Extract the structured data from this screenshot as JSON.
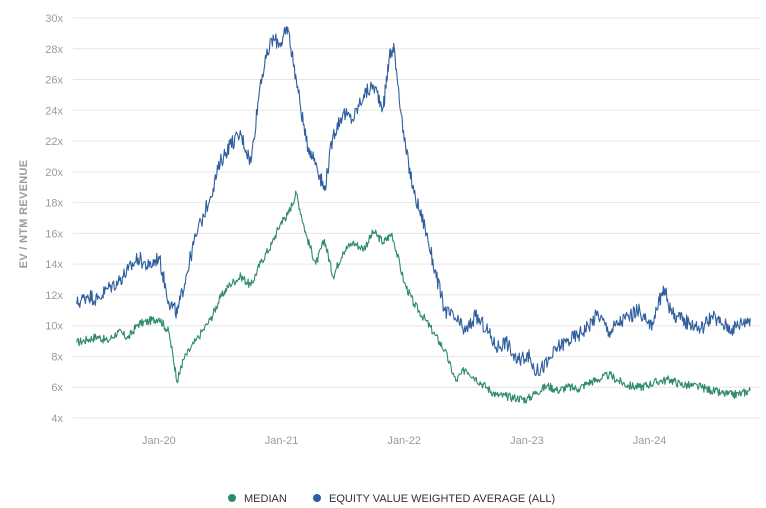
{
  "colors": {
    "median": "#2e8b6a",
    "weighted": "#2f5f9e",
    "grid": "#e6e6e6",
    "axis_text": "#9a9a9a"
  },
  "chart_data": {
    "type": "line",
    "title": "",
    "xlabel": "",
    "ylabel": "EV / NTM REVENUE",
    "ylim": [
      4,
      30
    ],
    "y_ticks": [
      4,
      6,
      8,
      10,
      12,
      14,
      16,
      18,
      20,
      22,
      24,
      26,
      28,
      30
    ],
    "y_tick_labels": [
      "4x",
      "6x",
      "8x",
      "10x",
      "12x",
      "14x",
      "16x",
      "18x",
      "20x",
      "22x",
      "24x",
      "26x",
      "28x",
      "30x"
    ],
    "x_range": [
      2019.3,
      2024.9
    ],
    "x_ticks": [
      2020.0,
      2021.0,
      2022.0,
      2023.0,
      2024.0
    ],
    "x_tick_labels": [
      "Jan-20",
      "Jan-21",
      "Jan-22",
      "Jan-23",
      "Jan-24"
    ],
    "grid": true,
    "legend_position": "bottom-center",
    "series": [
      {
        "name": "MEDIAN",
        "color": "#2e8b6a",
        "x": [
          2019.33,
          2019.42,
          2019.5,
          2019.58,
          2019.67,
          2019.75,
          2019.83,
          2019.92,
          2020.0,
          2020.08,
          2020.15,
          2020.2,
          2020.3,
          2020.42,
          2020.5,
          2020.58,
          2020.67,
          2020.75,
          2020.83,
          2020.92,
          2021.0,
          2021.05,
          2021.12,
          2021.2,
          2021.28,
          2021.35,
          2021.42,
          2021.5,
          2021.58,
          2021.67,
          2021.75,
          2021.83,
          2021.9,
          2022.0,
          2022.08,
          2022.17,
          2022.25,
          2022.33,
          2022.42,
          2022.5,
          2022.58,
          2022.67,
          2022.75,
          2022.83,
          2022.92,
          2023.0,
          2023.08,
          2023.17,
          2023.25,
          2023.33,
          2023.42,
          2023.5,
          2023.58,
          2023.67,
          2023.75,
          2023.83,
          2023.92,
          2024.0,
          2024.08,
          2024.17,
          2024.25,
          2024.33,
          2024.42,
          2024.5,
          2024.58,
          2024.67,
          2024.75,
          2024.82
        ],
        "values": [
          8.9,
          9.1,
          9.3,
          9.0,
          9.6,
          9.2,
          10.1,
          10.3,
          10.5,
          9.6,
          6.4,
          7.8,
          9.0,
          10.4,
          11.8,
          12.7,
          13.2,
          12.6,
          14.1,
          15.3,
          16.8,
          17.2,
          18.6,
          15.9,
          14.0,
          15.6,
          13.2,
          14.8,
          15.4,
          15.0,
          16.1,
          15.4,
          16.0,
          12.8,
          11.4,
          10.4,
          9.4,
          8.4,
          6.4,
          7.2,
          6.6,
          6.0,
          5.5,
          5.4,
          5.3,
          5.2,
          5.7,
          6.1,
          5.8,
          6.0,
          5.9,
          6.3,
          6.5,
          6.8,
          6.4,
          6.1,
          6.0,
          6.2,
          6.4,
          6.5,
          6.2,
          6.1,
          6.0,
          5.8,
          5.6,
          5.5,
          5.6,
          5.8
        ]
      },
      {
        "name": "EQUITY VALUE WEIGHTED AVERAGE (ALL)",
        "color": "#2f5f9e",
        "x": [
          2019.33,
          2019.42,
          2019.5,
          2019.58,
          2019.67,
          2019.75,
          2019.83,
          2019.92,
          2020.0,
          2020.08,
          2020.15,
          2020.22,
          2020.3,
          2020.42,
          2020.5,
          2020.58,
          2020.67,
          2020.75,
          2020.83,
          2020.92,
          2021.0,
          2021.05,
          2021.12,
          2021.2,
          2021.28,
          2021.35,
          2021.42,
          2021.5,
          2021.58,
          2021.67,
          2021.75,
          2021.83,
          2021.88,
          2021.92,
          2022.0,
          2022.08,
          2022.17,
          2022.25,
          2022.33,
          2022.42,
          2022.5,
          2022.58,
          2022.67,
          2022.75,
          2022.83,
          2022.92,
          2023.0,
          2023.08,
          2023.17,
          2023.25,
          2023.33,
          2023.42,
          2023.5,
          2023.58,
          2023.67,
          2023.75,
          2023.83,
          2023.92,
          2024.0,
          2024.08,
          2024.12,
          2024.17,
          2024.25,
          2024.33,
          2024.42,
          2024.5,
          2024.58,
          2024.67,
          2024.75,
          2024.82
        ],
        "values": [
          11.4,
          12.0,
          11.7,
          12.4,
          12.9,
          13.6,
          14.4,
          13.8,
          14.5,
          11.6,
          10.8,
          13.2,
          15.8,
          18.4,
          20.6,
          21.8,
          22.4,
          20.6,
          26.0,
          28.6,
          28.4,
          29.4,
          26.0,
          22.0,
          20.6,
          18.8,
          22.4,
          23.8,
          23.4,
          25.0,
          25.6,
          24.2,
          27.6,
          28.0,
          22.0,
          18.6,
          16.4,
          13.6,
          11.0,
          10.4,
          9.6,
          10.6,
          9.8,
          8.6,
          9.0,
          7.6,
          8.2,
          7.0,
          7.6,
          8.6,
          9.0,
          9.4,
          10.0,
          10.8,
          9.6,
          10.2,
          10.6,
          11.0,
          9.8,
          11.6,
          12.4,
          11.0,
          10.4,
          10.2,
          9.8,
          10.6,
          10.2,
          9.8,
          10.2,
          10.5
        ]
      }
    ]
  }
}
